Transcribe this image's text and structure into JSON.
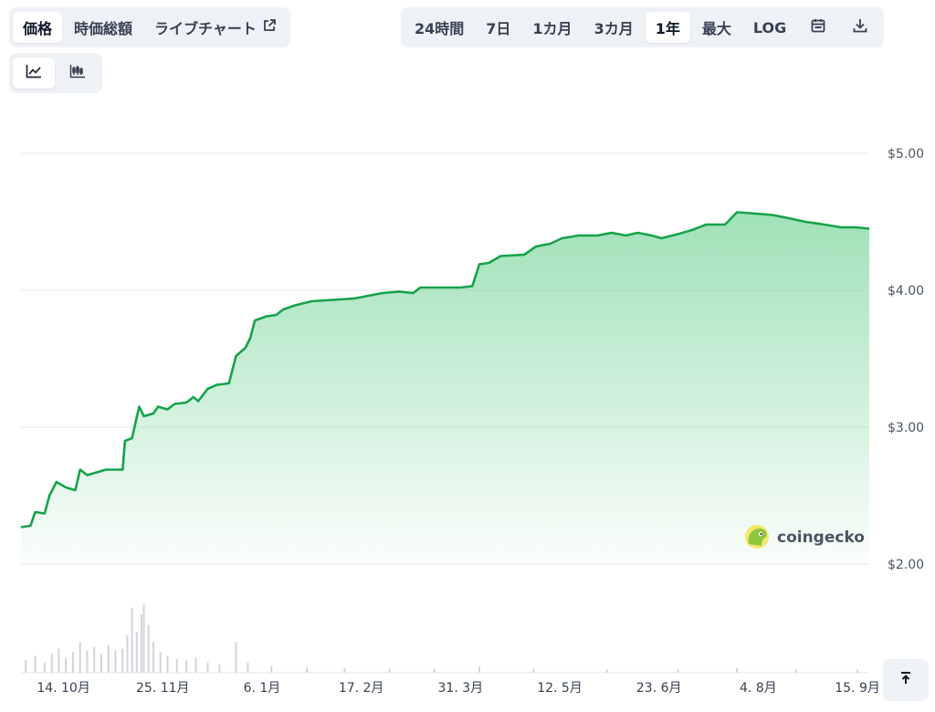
{
  "view_tabs": [
    {
      "label": "価格",
      "active": true
    },
    {
      "label": "時価総額",
      "active": false
    },
    {
      "label": "ライブチャート",
      "active": false,
      "icon": "external-link-icon"
    }
  ],
  "range_tabs": [
    {
      "label": "24時間",
      "active": false
    },
    {
      "label": "7日",
      "active": false
    },
    {
      "label": "1カ月",
      "active": false
    },
    {
      "label": "3カ月",
      "active": false
    },
    {
      "label": "1年",
      "active": true
    },
    {
      "label": "最大",
      "active": false
    },
    {
      "label": "LOG",
      "active": false
    }
  ],
  "range_icons": [
    "calendar-icon",
    "download-icon"
  ],
  "chart_type_tabs": [
    {
      "icon": "line-chart-icon",
      "active": true
    },
    {
      "icon": "candlestick-chart-icon",
      "active": false
    }
  ],
  "watermark": {
    "text": "coingecko",
    "icon": "coingecko-logo-icon"
  },
  "scroll_top": {
    "icon": "arrow-up-to-top-icon"
  },
  "colors": {
    "line": "#16a34a",
    "fill_top": "#8fdcab",
    "volume": "#d1d5db",
    "grid": "#e5e7eb"
  },
  "chart_data": {
    "type": "area",
    "title": "",
    "xlabel": "",
    "ylabel": "",
    "y_unit": "$",
    "ylim": [
      1.65,
      5.05
    ],
    "xlim": [
      "2024-09-26",
      "2025-09-20"
    ],
    "grid": true,
    "y_ticks": [
      {
        "value": 2.0,
        "label": "$2.00"
      },
      {
        "value": 3.0,
        "label": "$3.00"
      },
      {
        "value": 4.0,
        "label": "$4.00"
      },
      {
        "value": 5.0,
        "label": "$5.00"
      }
    ],
    "x_ticks": [
      {
        "date": "2024-10-14",
        "label": "14. 10月"
      },
      {
        "date": "2024-11-25",
        "label": "25. 11月"
      },
      {
        "date": "2025-01-06",
        "label": "6. 1月"
      },
      {
        "date": "2025-02-17",
        "label": "17. 2月"
      },
      {
        "date": "2025-03-31",
        "label": "31. 3月"
      },
      {
        "date": "2025-05-12",
        "label": "12. 5月"
      },
      {
        "date": "2025-06-23",
        "label": "23. 6月"
      },
      {
        "date": "2025-08-04",
        "label": "4. 8月"
      },
      {
        "date": "2025-09-15",
        "label": "15. 9月"
      }
    ],
    "price": [
      [
        "2024-09-26",
        2.27
      ],
      [
        "2024-09-30",
        2.28
      ],
      [
        "2024-10-02",
        2.38
      ],
      [
        "2024-10-06",
        2.37
      ],
      [
        "2024-10-08",
        2.5
      ],
      [
        "2024-10-11",
        2.6
      ],
      [
        "2024-10-15",
        2.56
      ],
      [
        "2024-10-19",
        2.54
      ],
      [
        "2024-10-21",
        2.69
      ],
      [
        "2024-10-24",
        2.65
      ],
      [
        "2024-10-28",
        2.67
      ],
      [
        "2024-11-01",
        2.69
      ],
      [
        "2024-11-08",
        2.69
      ],
      [
        "2024-11-09",
        2.9
      ],
      [
        "2024-11-12",
        2.92
      ],
      [
        "2024-11-15",
        3.15
      ],
      [
        "2024-11-17",
        3.08
      ],
      [
        "2024-11-21",
        3.1
      ],
      [
        "2024-11-23",
        3.15
      ],
      [
        "2024-11-27",
        3.13
      ],
      [
        "2024-11-30",
        3.17
      ],
      [
        "2024-12-05",
        3.18
      ],
      [
        "2024-12-08",
        3.22
      ],
      [
        "2024-12-10",
        3.19
      ],
      [
        "2024-12-14",
        3.28
      ],
      [
        "2024-12-18",
        3.31
      ],
      [
        "2024-12-23",
        3.32
      ],
      [
        "2024-12-26",
        3.52
      ],
      [
        "2024-12-30",
        3.58
      ],
      [
        "2025-01-01",
        3.65
      ],
      [
        "2025-01-03",
        3.78
      ],
      [
        "2025-01-08",
        3.81
      ],
      [
        "2025-01-12",
        3.82
      ],
      [
        "2025-01-15",
        3.86
      ],
      [
        "2025-01-20",
        3.89
      ],
      [
        "2025-01-27",
        3.92
      ],
      [
        "2025-02-05",
        3.93
      ],
      [
        "2025-02-14",
        3.94
      ],
      [
        "2025-02-20",
        3.96
      ],
      [
        "2025-02-26",
        3.98
      ],
      [
        "2025-03-05",
        3.99
      ],
      [
        "2025-03-11",
        3.98
      ],
      [
        "2025-03-14",
        4.02
      ],
      [
        "2025-03-24",
        4.02
      ],
      [
        "2025-03-31",
        4.02
      ],
      [
        "2025-04-05",
        4.03
      ],
      [
        "2025-04-08",
        4.19
      ],
      [
        "2025-04-12",
        4.2
      ],
      [
        "2025-04-17",
        4.25
      ],
      [
        "2025-04-27",
        4.26
      ],
      [
        "2025-05-02",
        4.32
      ],
      [
        "2025-05-08",
        4.34
      ],
      [
        "2025-05-13",
        4.38
      ],
      [
        "2025-05-20",
        4.4
      ],
      [
        "2025-05-28",
        4.4
      ],
      [
        "2025-06-03",
        4.42
      ],
      [
        "2025-06-09",
        4.4
      ],
      [
        "2025-06-14",
        4.42
      ],
      [
        "2025-06-20",
        4.4
      ],
      [
        "2025-06-24",
        4.38
      ],
      [
        "2025-07-01",
        4.41
      ],
      [
        "2025-07-07",
        4.44
      ],
      [
        "2025-07-13",
        4.48
      ],
      [
        "2025-07-21",
        4.48
      ],
      [
        "2025-07-26",
        4.57
      ],
      [
        "2025-08-03",
        4.56
      ],
      [
        "2025-08-10",
        4.55
      ],
      [
        "2025-08-16",
        4.53
      ],
      [
        "2025-08-24",
        4.5
      ],
      [
        "2025-09-01",
        4.48
      ],
      [
        "2025-09-08",
        4.46
      ],
      [
        "2025-09-14",
        4.46
      ],
      [
        "2025-09-20",
        4.45
      ]
    ],
    "volume_relative": [
      [
        "2024-09-28",
        0.18
      ],
      [
        "2024-10-02",
        0.25
      ],
      [
        "2024-10-06",
        0.15
      ],
      [
        "2024-10-09",
        0.28
      ],
      [
        "2024-10-12",
        0.35
      ],
      [
        "2024-10-15",
        0.22
      ],
      [
        "2024-10-18",
        0.3
      ],
      [
        "2024-10-21",
        0.45
      ],
      [
        "2024-10-24",
        0.32
      ],
      [
        "2024-10-27",
        0.38
      ],
      [
        "2024-10-30",
        0.28
      ],
      [
        "2024-11-02",
        0.4
      ],
      [
        "2024-11-05",
        0.33
      ],
      [
        "2024-11-08",
        0.35
      ],
      [
        "2024-11-10",
        0.55
      ],
      [
        "2024-11-12",
        0.95
      ],
      [
        "2024-11-14",
        0.6
      ],
      [
        "2024-11-16",
        0.85
      ],
      [
        "2024-11-17",
        1.0
      ],
      [
        "2024-11-19",
        0.7
      ],
      [
        "2024-11-21",
        0.45
      ],
      [
        "2024-11-24",
        0.3
      ],
      [
        "2024-11-27",
        0.25
      ],
      [
        "2024-12-01",
        0.2
      ],
      [
        "2024-12-05",
        0.18
      ],
      [
        "2024-12-09",
        0.22
      ],
      [
        "2024-12-14",
        0.15
      ],
      [
        "2024-12-19",
        0.12
      ],
      [
        "2024-12-26",
        0.45
      ],
      [
        "2024-12-31",
        0.15
      ],
      [
        "2025-01-10",
        0.1
      ],
      [
        "2025-01-25",
        0.08
      ],
      [
        "2025-02-10",
        0.07
      ],
      [
        "2025-03-01",
        0.06
      ],
      [
        "2025-03-20",
        0.06
      ],
      [
        "2025-04-08",
        0.09
      ],
      [
        "2025-05-01",
        0.06
      ],
      [
        "2025-06-01",
        0.05
      ],
      [
        "2025-07-01",
        0.05
      ],
      [
        "2025-07-26",
        0.07
      ],
      [
        "2025-08-20",
        0.05
      ],
      [
        "2025-09-15",
        0.05
      ]
    ]
  }
}
